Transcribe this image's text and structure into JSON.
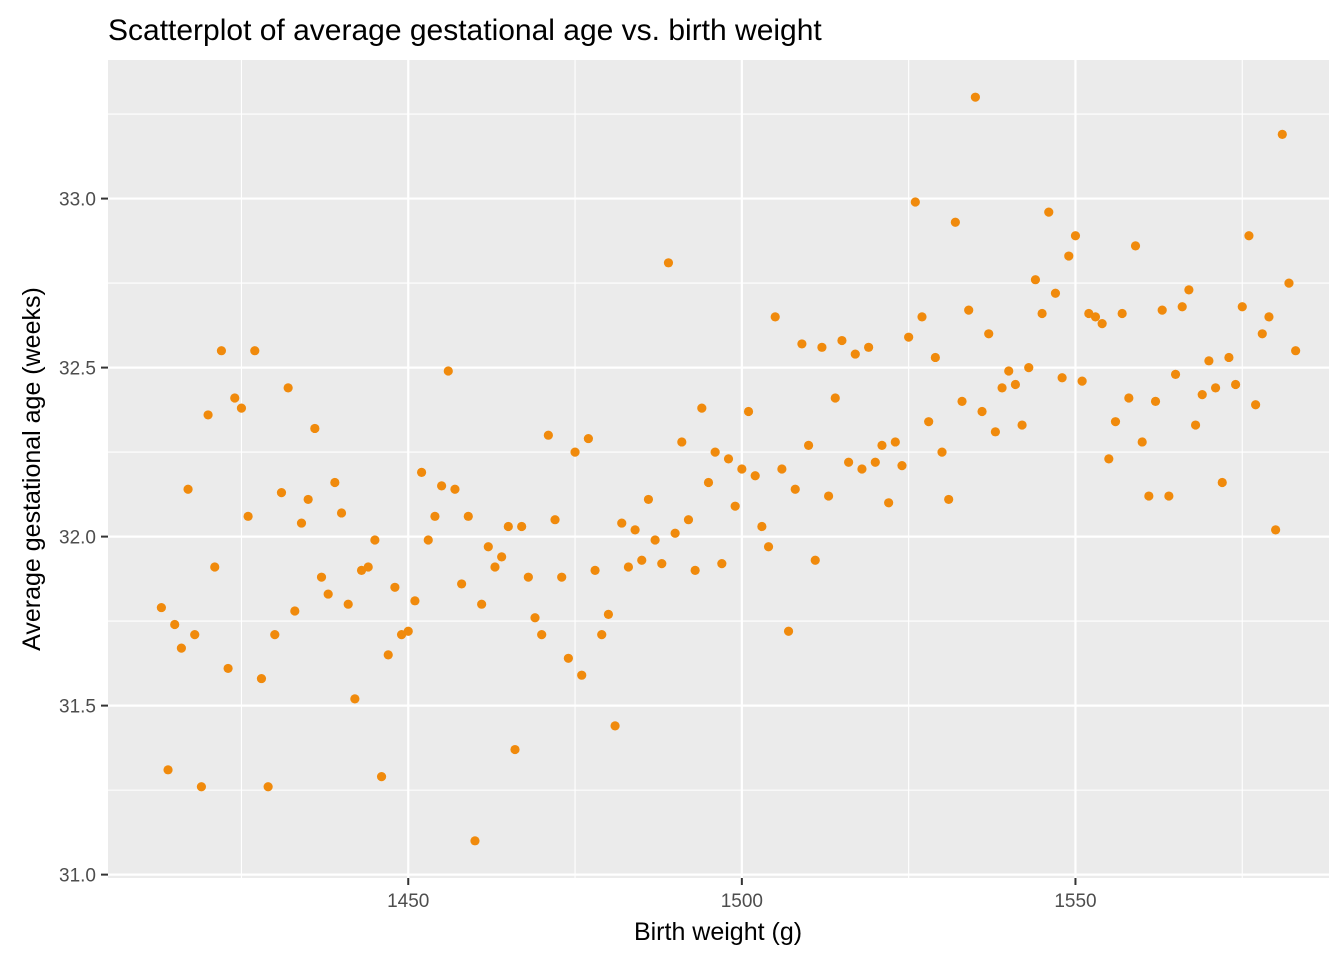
{
  "chart_data": {
    "type": "scatter",
    "title": "Scatterplot of average gestational age vs. birth weight",
    "xlabel": "Birth weight (g)",
    "ylabel": "Average gestational age (weeks)",
    "xlim": [
      1405,
      1588
    ],
    "ylim": [
      30.99,
      33.41
    ],
    "x_ticks": [
      1450,
      1500,
      1550
    ],
    "x_tick_labels": [
      "1450",
      "1500",
      "1550"
    ],
    "x_minor_ticks": [
      1425,
      1475,
      1525,
      1575
    ],
    "y_ticks": [
      31.0,
      31.5,
      32.0,
      32.5,
      33.0
    ],
    "y_tick_labels": [
      "31.0",
      "31.5",
      "32.0",
      "32.5",
      "33.0"
    ],
    "y_minor_ticks": [
      31.25,
      31.75,
      32.25,
      32.75,
      33.25
    ],
    "grid": true,
    "legend": "none",
    "colors": {
      "point": "#F08A0C",
      "panel": "#EBEBEB",
      "grid": "#FFFFFF",
      "tick": "#333333"
    },
    "points": [
      [
        1413,
        31.79
      ],
      [
        1414,
        31.31
      ],
      [
        1415,
        31.74
      ],
      [
        1416,
        31.67
      ],
      [
        1417,
        32.14
      ],
      [
        1418,
        31.71
      ],
      [
        1419,
        31.26
      ],
      [
        1420,
        32.36
      ],
      [
        1421,
        31.91
      ],
      [
        1422,
        32.55
      ],
      [
        1423,
        31.61
      ],
      [
        1424,
        32.41
      ],
      [
        1425,
        32.38
      ],
      [
        1426,
        32.06
      ],
      [
        1427,
        32.55
      ],
      [
        1428,
        31.58
      ],
      [
        1429,
        31.26
      ],
      [
        1430,
        31.71
      ],
      [
        1431,
        32.13
      ],
      [
        1432,
        32.44
      ],
      [
        1433,
        31.78
      ],
      [
        1434,
        32.04
      ],
      [
        1435,
        32.11
      ],
      [
        1436,
        32.32
      ],
      [
        1437,
        31.88
      ],
      [
        1438,
        31.83
      ],
      [
        1439,
        32.16
      ],
      [
        1440,
        32.07
      ],
      [
        1441,
        31.8
      ],
      [
        1442,
        31.52
      ],
      [
        1443,
        31.9
      ],
      [
        1444,
        31.91
      ],
      [
        1445,
        31.99
      ],
      [
        1446,
        31.29
      ],
      [
        1447,
        31.65
      ],
      [
        1448,
        31.85
      ],
      [
        1449,
        31.71
      ],
      [
        1450,
        31.72
      ],
      [
        1451,
        31.81
      ],
      [
        1452,
        32.19
      ],
      [
        1453,
        31.99
      ],
      [
        1454,
        32.06
      ],
      [
        1455,
        32.15
      ],
      [
        1456,
        32.49
      ],
      [
        1457,
        32.14
      ],
      [
        1458,
        31.86
      ],
      [
        1459,
        32.06
      ],
      [
        1460,
        31.1
      ],
      [
        1461,
        31.8
      ],
      [
        1462,
        31.97
      ],
      [
        1463,
        31.91
      ],
      [
        1464,
        31.94
      ],
      [
        1465,
        32.03
      ],
      [
        1466,
        31.37
      ],
      [
        1467,
        32.03
      ],
      [
        1468,
        31.88
      ],
      [
        1469,
        31.76
      ],
      [
        1470,
        31.71
      ],
      [
        1471,
        32.3
      ],
      [
        1472,
        32.05
      ],
      [
        1473,
        31.88
      ],
      [
        1474,
        31.64
      ],
      [
        1475,
        32.25
      ],
      [
        1476,
        31.59
      ],
      [
        1477,
        32.29
      ],
      [
        1478,
        31.9
      ],
      [
        1479,
        31.71
      ],
      [
        1480,
        31.77
      ],
      [
        1481,
        31.44
      ],
      [
        1482,
        32.04
      ],
      [
        1483,
        31.91
      ],
      [
        1484,
        32.02
      ],
      [
        1485,
        31.93
      ],
      [
        1486,
        32.11
      ],
      [
        1487,
        31.99
      ],
      [
        1488,
        31.92
      ],
      [
        1489,
        32.81
      ],
      [
        1490,
        32.01
      ],
      [
        1491,
        32.28
      ],
      [
        1492,
        32.05
      ],
      [
        1493,
        31.9
      ],
      [
        1494,
        32.38
      ],
      [
        1495,
        32.16
      ],
      [
        1496,
        32.25
      ],
      [
        1497,
        31.92
      ],
      [
        1498,
        32.23
      ],
      [
        1499,
        32.09
      ],
      [
        1500,
        32.2
      ],
      [
        1501,
        32.37
      ],
      [
        1502,
        32.18
      ],
      [
        1503,
        32.03
      ],
      [
        1504,
        31.97
      ],
      [
        1505,
        32.65
      ],
      [
        1506,
        32.2
      ],
      [
        1507,
        31.72
      ],
      [
        1508,
        32.14
      ],
      [
        1509,
        32.57
      ],
      [
        1510,
        32.27
      ],
      [
        1511,
        31.93
      ],
      [
        1512,
        32.56
      ],
      [
        1513,
        32.12
      ],
      [
        1514,
        32.41
      ],
      [
        1515,
        32.58
      ],
      [
        1516,
        32.22
      ],
      [
        1517,
        32.54
      ],
      [
        1518,
        32.2
      ],
      [
        1519,
        32.56
      ],
      [
        1520,
        32.22
      ],
      [
        1521,
        32.27
      ],
      [
        1522,
        32.1
      ],
      [
        1523,
        32.28
      ],
      [
        1524,
        32.21
      ],
      [
        1525,
        32.59
      ],
      [
        1526,
        32.99
      ],
      [
        1527,
        32.65
      ],
      [
        1528,
        32.34
      ],
      [
        1529,
        32.53
      ],
      [
        1530,
        32.25
      ],
      [
        1531,
        32.11
      ],
      [
        1532,
        32.93
      ],
      [
        1533,
        32.4
      ],
      [
        1534,
        32.67
      ],
      [
        1535,
        33.3
      ],
      [
        1536,
        32.37
      ],
      [
        1537,
        32.6
      ],
      [
        1538,
        32.31
      ],
      [
        1539,
        32.44
      ],
      [
        1540,
        32.49
      ],
      [
        1541,
        32.45
      ],
      [
        1542,
        32.33
      ],
      [
        1543,
        32.5
      ],
      [
        1544,
        32.76
      ],
      [
        1545,
        32.66
      ],
      [
        1546,
        32.96
      ],
      [
        1547,
        32.72
      ],
      [
        1548,
        32.47
      ],
      [
        1549,
        32.83
      ],
      [
        1550,
        32.89
      ],
      [
        1551,
        32.46
      ],
      [
        1552,
        32.66
      ],
      [
        1553,
        32.65
      ],
      [
        1554,
        32.63
      ],
      [
        1555,
        32.23
      ],
      [
        1556,
        32.34
      ],
      [
        1557,
        32.66
      ],
      [
        1558,
        32.41
      ],
      [
        1559,
        32.86
      ],
      [
        1560,
        32.28
      ],
      [
        1561,
        32.12
      ],
      [
        1562,
        32.4
      ],
      [
        1563,
        32.67
      ],
      [
        1564,
        32.12
      ],
      [
        1565,
        32.48
      ],
      [
        1566,
        32.68
      ],
      [
        1567,
        32.73
      ],
      [
        1568,
        32.33
      ],
      [
        1569,
        32.42
      ],
      [
        1570,
        32.52
      ],
      [
        1571,
        32.44
      ],
      [
        1572,
        32.16
      ],
      [
        1573,
        32.53
      ],
      [
        1574,
        32.45
      ],
      [
        1575,
        32.68
      ],
      [
        1576,
        32.89
      ],
      [
        1577,
        32.39
      ],
      [
        1578,
        32.6
      ],
      [
        1579,
        32.65
      ],
      [
        1580,
        32.02
      ],
      [
        1581,
        33.19
      ],
      [
        1582,
        32.75
      ],
      [
        1583,
        32.55
      ]
    ]
  }
}
